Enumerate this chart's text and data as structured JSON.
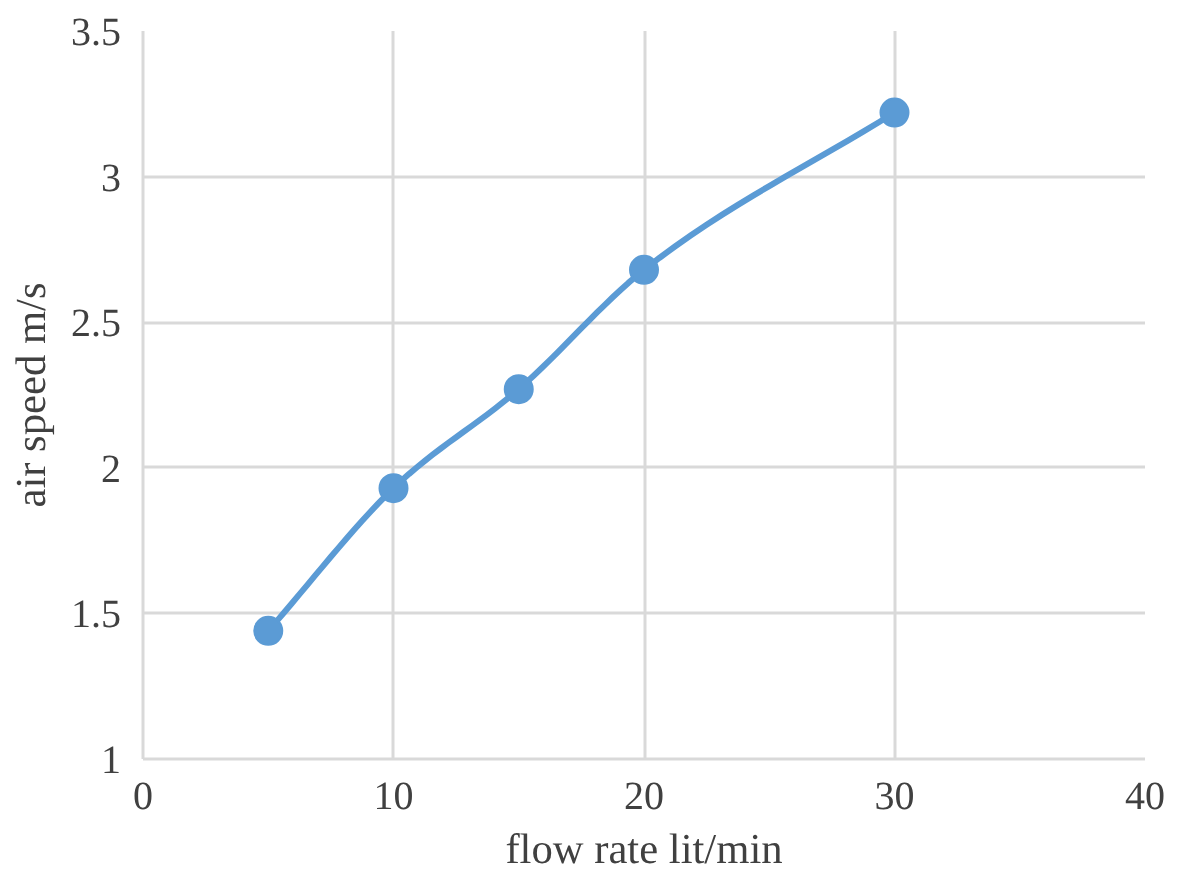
{
  "chart_data": {
    "type": "line",
    "xlabel": "flow rate lit/min",
    "ylabel": "air speed m/s",
    "x": [
      5,
      10,
      15,
      20,
      30
    ],
    "series": [
      {
        "color": "#5b9bd5",
        "values": [
          1.44,
          1.93,
          2.27,
          2.68,
          3.22
        ]
      }
    ],
    "xlim": [
      0,
      40
    ],
    "xticks": [
      0,
      10,
      20,
      30,
      40
    ],
    "ylim": [
      1,
      3.5
    ],
    "yticks": [
      1,
      1.5,
      2,
      2.5,
      3,
      3.5
    ],
    "grid": true,
    "marker": "circle",
    "line_style": "solid"
  }
}
